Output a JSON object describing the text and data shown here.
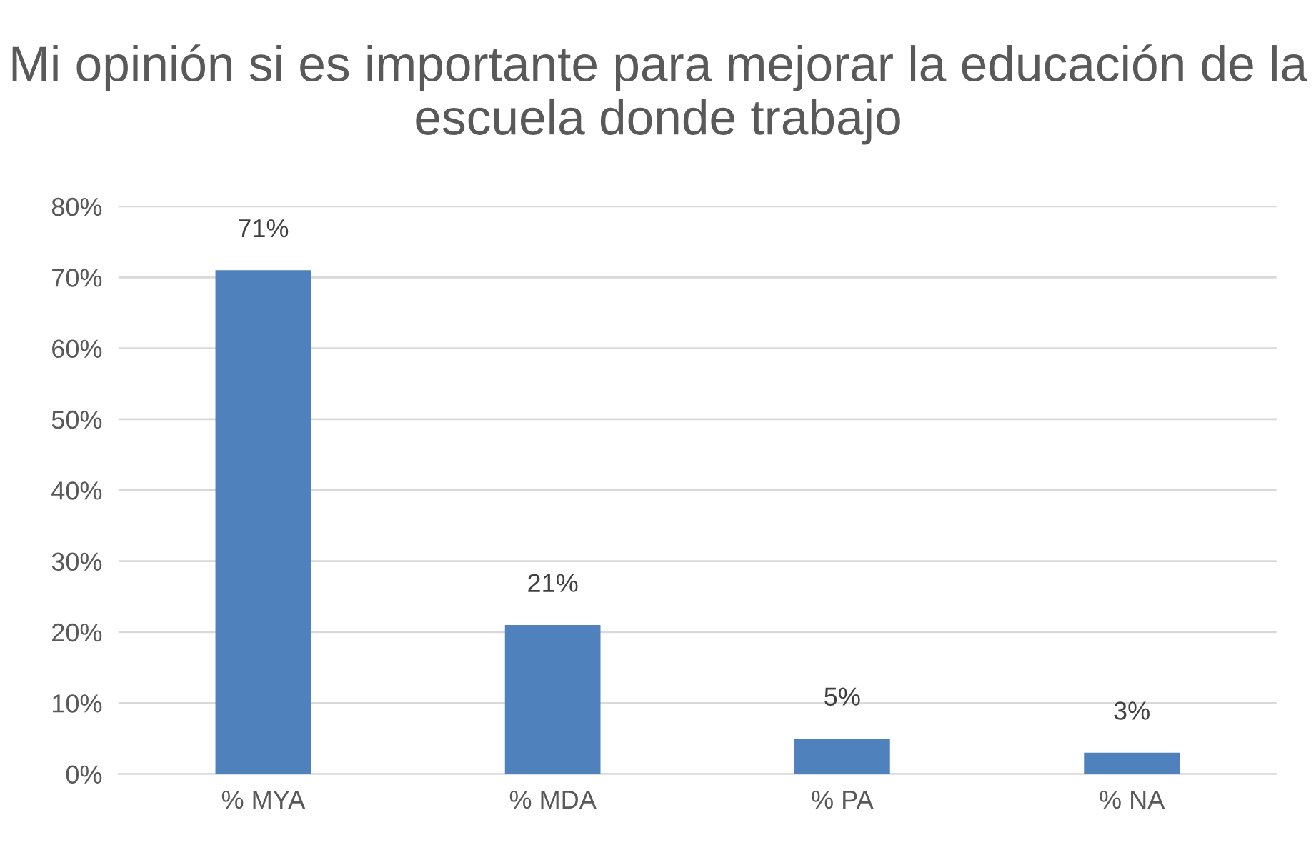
{
  "chart_data": {
    "type": "bar",
    "title": "Mi opinión si es importante para mejorar la educación de la escuela donde trabajo",
    "categories": [
      "% MYA",
      "% MDA",
      "% PA",
      "% NA"
    ],
    "values": [
      71,
      21,
      5,
      3
    ],
    "value_labels": [
      "71%",
      "21%",
      "5%",
      "3%"
    ],
    "color": "#4f81bd",
    "ylim": [
      0,
      80
    ],
    "yticks": [
      {
        "value": 0,
        "label": "0%"
      },
      {
        "value": 10,
        "label": "10%"
      },
      {
        "value": 20,
        "label": "20%"
      },
      {
        "value": 30,
        "label": "30%"
      },
      {
        "value": 40,
        "label": "40%"
      },
      {
        "value": 50,
        "label": "50%"
      },
      {
        "value": 60,
        "label": "60%"
      },
      {
        "value": 70,
        "label": "70%"
      },
      {
        "value": 80,
        "label": "80%"
      }
    ],
    "grid": "y"
  }
}
